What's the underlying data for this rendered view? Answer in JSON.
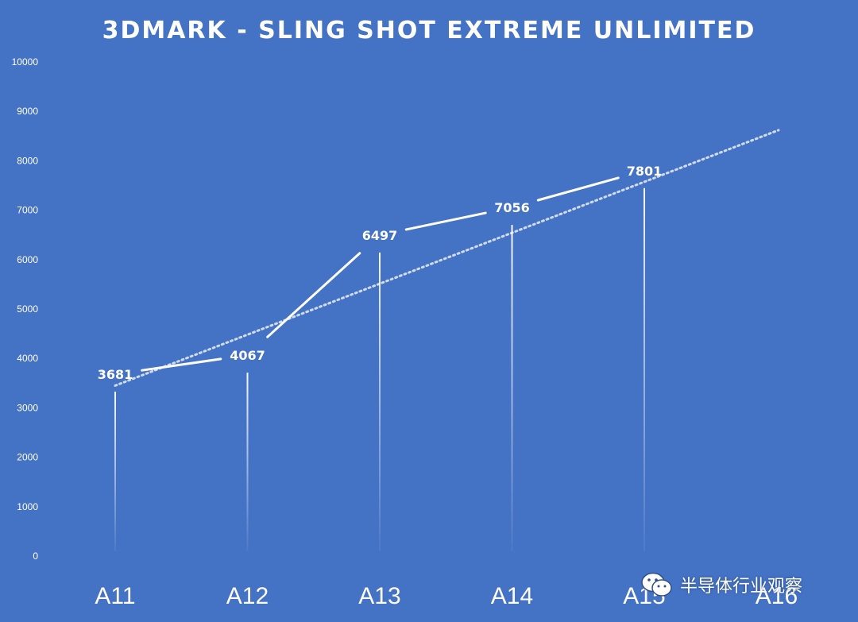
{
  "chart_data": {
    "type": "line",
    "title": "3DMARK - SLING SHOT EXTREME UNLIMITED",
    "categories": [
      "A11",
      "A12",
      "A13",
      "A14",
      "A15",
      "A16"
    ],
    "series": [
      {
        "values": [
          3681,
          4067,
          6497,
          7056,
          7801,
          null
        ]
      }
    ],
    "data_labels": [
      "3681",
      "4067",
      "6497",
      "7056",
      "7801"
    ],
    "trendline": {
      "style": "dotted",
      "type": "linear",
      "start": 3450,
      "end": 8620
    },
    "ylim": [
      0,
      10000
    ],
    "yticks": [
      0,
      1000,
      2000,
      3000,
      4000,
      5000,
      6000,
      7000,
      8000,
      9000,
      10000
    ],
    "xlabel": "",
    "ylabel": "",
    "grid": false,
    "legend": "none",
    "colors": {
      "background": "#4472c4",
      "line": "#ffffff",
      "text": "#ffffff"
    }
  },
  "watermark": {
    "icon": "wechat-icon",
    "text": "半导体行业观察"
  }
}
